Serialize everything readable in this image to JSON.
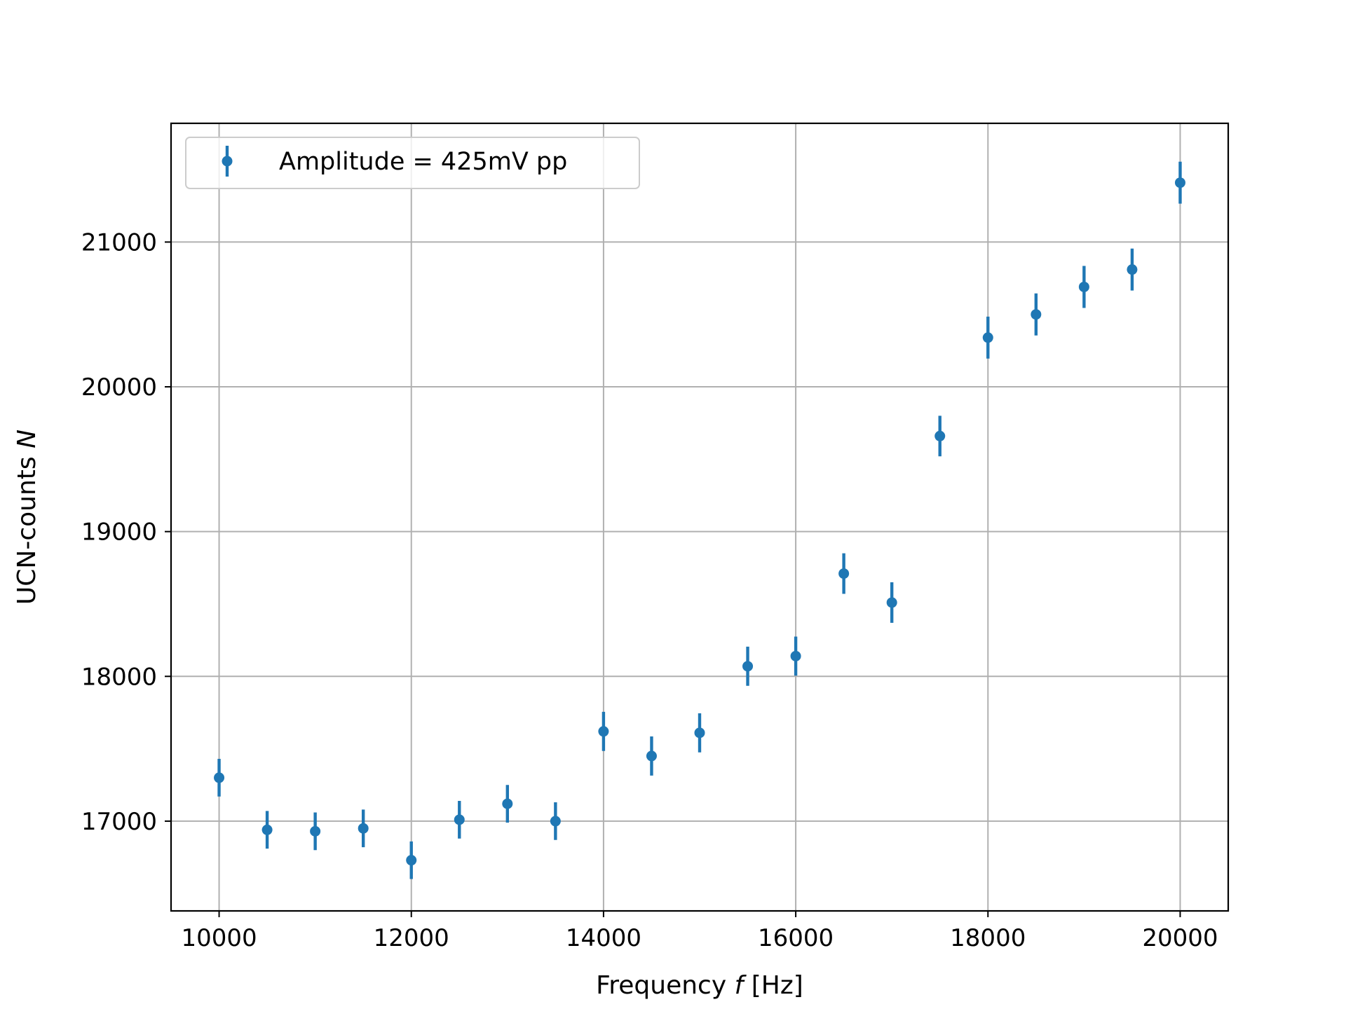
{
  "chart_data": {
    "type": "scatter",
    "title": "",
    "xlabel": "Frequency",
    "xlabel_symbol": "f",
    "xlabel_unit": "[Hz]",
    "ylabel": "UCN-counts",
    "ylabel_symbol": "N",
    "xlim": [
      9500,
      20500
    ],
    "ylim": [
      16380,
      21820
    ],
    "xticks": [
      10000,
      12000,
      14000,
      16000,
      18000,
      20000
    ],
    "yticks": [
      17000,
      18000,
      19000,
      20000,
      21000
    ],
    "grid": true,
    "legend": {
      "placement": "top-left",
      "entries": [
        "Amplitude = 425mV pp"
      ]
    },
    "series": [
      {
        "name": "Amplitude = 425mV pp",
        "color": "#1f77b4",
        "marker": "circle",
        "x": [
          10000,
          10500,
          11000,
          11500,
          12000,
          12500,
          13000,
          13500,
          14000,
          14500,
          15000,
          15500,
          16000,
          16500,
          17000,
          17500,
          18000,
          18500,
          19000,
          19500,
          20000
        ],
        "y": [
          17300,
          16940,
          16930,
          16950,
          16730,
          17010,
          17120,
          17000,
          17620,
          17450,
          17610,
          18070,
          18140,
          18710,
          18510,
          19660,
          20340,
          20500,
          20690,
          20810,
          21410
        ],
        "yerr": [
          130,
          130,
          130,
          130,
          130,
          130,
          130,
          130,
          135,
          135,
          135,
          135,
          135,
          140,
          140,
          140,
          145,
          145,
          145,
          145,
          145
        ]
      }
    ]
  }
}
